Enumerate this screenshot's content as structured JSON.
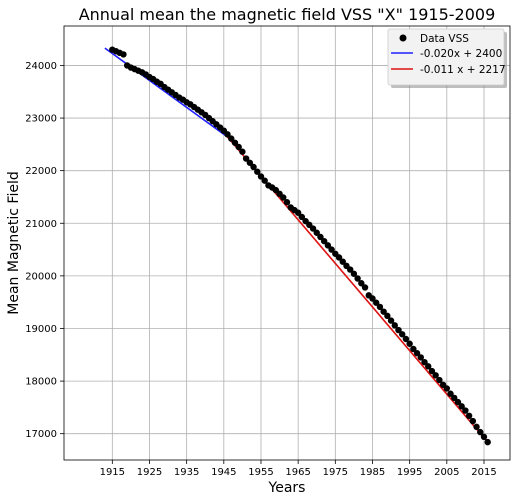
{
  "chart_data": {
    "type": "scatter",
    "title": "Annual mean the magnetic field VSS \"X\" 1915-2009",
    "xlabel": "Years",
    "ylabel": "Mean Magnetic Field",
    "xlim": [
      1902,
      2022
    ],
    "ylim": [
      16500,
      24750
    ],
    "xticks": [
      1915,
      1925,
      1935,
      1945,
      1955,
      1965,
      1975,
      1985,
      1995,
      2005,
      2015
    ],
    "yticks": [
      17000,
      18000,
      19000,
      20000,
      21000,
      22000,
      23000,
      24000
    ],
    "grid": true,
    "legend_position": "top-right",
    "series": [
      {
        "name": "Data VSS",
        "kind": "scatter",
        "color": "#000000",
        "x": [
          1915,
          1916,
          1917,
          1918,
          1919,
          1920,
          1921,
          1922,
          1923,
          1924,
          1925,
          1926,
          1927,
          1928,
          1929,
          1930,
          1931,
          1932,
          1933,
          1934,
          1935,
          1936,
          1937,
          1938,
          1939,
          1940,
          1941,
          1942,
          1943,
          1944,
          1945,
          1946,
          1947,
          1948,
          1949,
          1950,
          1951,
          1952,
          1953,
          1954,
          1955,
          1956,
          1957,
          1958,
          1959,
          1960,
          1961,
          1962,
          1963,
          1964,
          1965,
          1966,
          1967,
          1968,
          1969,
          1970,
          1971,
          1972,
          1973,
          1974,
          1975,
          1976,
          1977,
          1978,
          1979,
          1980,
          1981,
          1982,
          1983,
          1984,
          1985,
          1986,
          1987,
          1988,
          1989,
          1990,
          1991,
          1992,
          1993,
          1994,
          1995,
          1996,
          1997,
          1998,
          1999,
          2000,
          2001,
          2002,
          2003,
          2004,
          2005,
          2006,
          2007,
          2008,
          2009,
          2010,
          2011,
          2012,
          2013,
          2014,
          2015,
          2016
        ],
        "y": [
          24300,
          24270,
          24240,
          24210,
          24000,
          23960,
          23930,
          23900,
          23870,
          23830,
          23780,
          23740,
          23690,
          23650,
          23590,
          23540,
          23490,
          23440,
          23390,
          23350,
          23300,
          23260,
          23210,
          23160,
          23110,
          23060,
          23000,
          22940,
          22880,
          22820,
          22760,
          22690,
          22610,
          22530,
          22450,
          22360,
          22230,
          22150,
          22070,
          21980,
          21890,
          21810,
          21720,
          21680,
          21630,
          21560,
          21490,
          21400,
          21300,
          21250,
          21200,
          21120,
          21040,
          20970,
          20900,
          20820,
          20740,
          20660,
          20580,
          20500,
          20420,
          20350,
          20270,
          20190,
          20120,
          20040,
          19950,
          19860,
          19780,
          19630,
          19570,
          19490,
          19410,
          19320,
          19240,
          19150,
          19060,
          18970,
          18890,
          18800,
          18710,
          18610,
          18530,
          18450,
          18360,
          18280,
          18190,
          18110,
          18020,
          17930,
          17860,
          17760,
          17680,
          17600,
          17520,
          17440,
          17340,
          17240,
          17130,
          17030,
          16940,
          16840
        ]
      },
      {
        "name": "-0.020x + 2400",
        "kind": "line",
        "color": "#1f1fff",
        "x": [
          1913,
          1946
        ],
        "y": [
          24330,
          22640
        ]
      },
      {
        "name": "-0.011 x + 2217",
        "kind": "line",
        "color": "#dd1111",
        "x": [
          1946,
          2016
        ],
        "y": [
          22640,
          16840
        ]
      }
    ]
  }
}
